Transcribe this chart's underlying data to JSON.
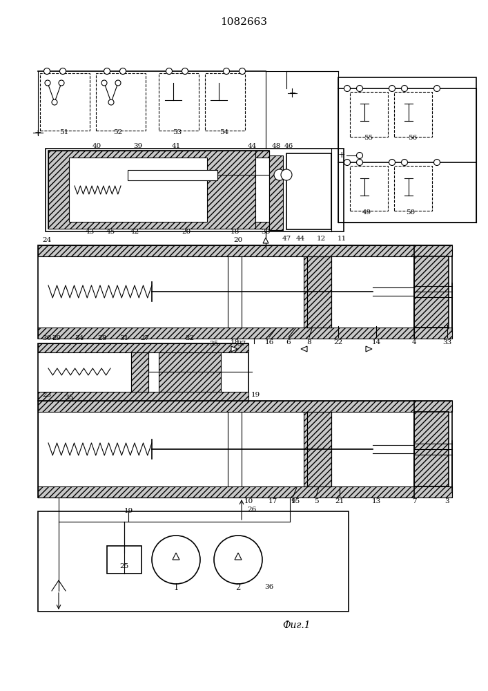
{
  "title": "1082663",
  "fig_label": "Фиг.1",
  "bg_color": "#ffffff",
  "lc": "#000000",
  "title_fontsize": 11,
  "label_fontsize": 7.5,
  "caption_fontsize": 10,
  "lw": 0.8,
  "lw2": 1.2,
  "lw3": 1.5
}
